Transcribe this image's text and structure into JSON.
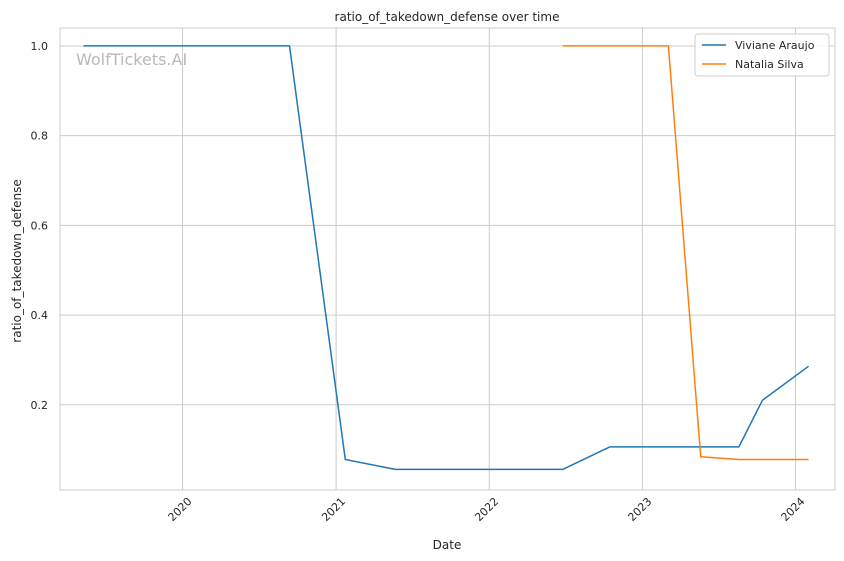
{
  "chart_data": {
    "type": "line",
    "title": "ratio_of_takedown_defense over time",
    "xlabel": "Date",
    "ylabel": "ratio_of_takedown_defense",
    "watermark": "WolfTickets.AI",
    "x_ticks": [
      "2020",
      "2021",
      "2022",
      "2023",
      "2024"
    ],
    "y_ticks": [
      "0.2",
      "0.4",
      "0.6",
      "0.8",
      "1.0"
    ],
    "xlim": [
      "2019-03-15",
      "2024-04-04"
    ],
    "ylim": [
      0.01,
      1.04
    ],
    "grid": true,
    "legend_position": "top-right",
    "series": [
      {
        "name": "Viviane Araujo",
        "color": "#1f77b4",
        "points": [
          {
            "x": "2019-05-10",
            "y": 1.0
          },
          {
            "x": "2020-09-12",
            "y": 1.0
          },
          {
            "x": "2021-01-23",
            "y": 0.078
          },
          {
            "x": "2021-05-22",
            "y": 0.056
          },
          {
            "x": "2022-06-25",
            "y": 0.056
          },
          {
            "x": "2022-10-15",
            "y": 0.106
          },
          {
            "x": "2023-08-19",
            "y": 0.106
          },
          {
            "x": "2023-10-14",
            "y": 0.21
          },
          {
            "x": "2024-02-01",
            "y": 0.286
          }
        ]
      },
      {
        "name": "Natalia Silva",
        "color": "#ff7f0e",
        "points": [
          {
            "x": "2022-06-25",
            "y": 1.0
          },
          {
            "x": "2023-03-04",
            "y": 1.0
          },
          {
            "x": "2023-05-20",
            "y": 0.084
          },
          {
            "x": "2023-08-19",
            "y": 0.078
          },
          {
            "x": "2024-02-01",
            "y": 0.078
          }
        ]
      }
    ]
  }
}
